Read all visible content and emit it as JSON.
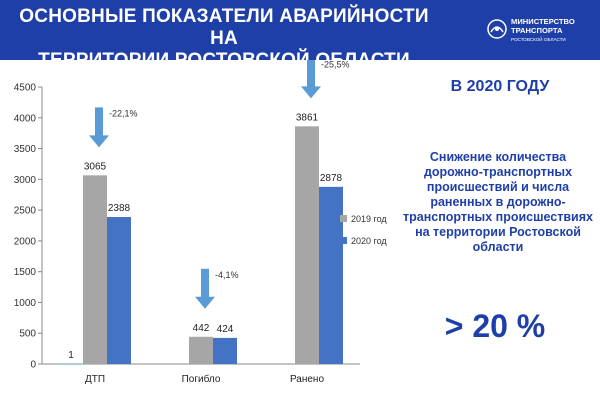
{
  "header": {
    "title_line1": "ОСНОВНЫЕ ПОКАЗАТЕЛИ АВАРИЙНОСТИ НА",
    "title_line2": "ТЕРРИТОРИИ РОСТОВСКОЙ ОБЛАСТИ"
  },
  "logo": {
    "line1": "МИНИСТЕРСТВО",
    "line2": "ТРАНСПОРТА",
    "line3": "РОСТОВСКОЙ ОБЛАСТИ"
  },
  "side": {
    "year": "В 2020 ГОДУ",
    "desc_lines": [
      "Снижение количества",
      "дорожно-транспортных",
      "происшествий и числа",
      "раненных в дорожно-",
      "транспортных происшествиях",
      "на территории Ростовской",
      "области"
    ],
    "big": "> 20 %"
  },
  "colors": {
    "header_bg": "#1f3fa8",
    "series_2019": "#a6a6a6",
    "series_2020": "#4472c4",
    "series_0": "#4bacc6",
    "arrow": "#5b9bd5"
  },
  "chart_data": {
    "type": "bar",
    "categories": [
      "ДТП",
      "Погибло",
      "Ранено"
    ],
    "series": [
      {
        "name": "",
        "values": [
          1,
          null,
          null
        ]
      },
      {
        "name": "2019 год",
        "values": [
          3065,
          442,
          3861
        ]
      },
      {
        "name": "2020 год",
        "values": [
          2388,
          424,
          2878
        ]
      }
    ],
    "ylim": [
      0,
      4500
    ],
    "yticks": [
      0,
      500,
      1000,
      1500,
      2000,
      2500,
      3000,
      3500,
      4000,
      4500
    ],
    "legend_position": "right",
    "changes": [
      "-22,1%",
      "-4,1%",
      "-25,5%"
    ],
    "title": "",
    "xlabel": "",
    "ylabel": ""
  }
}
